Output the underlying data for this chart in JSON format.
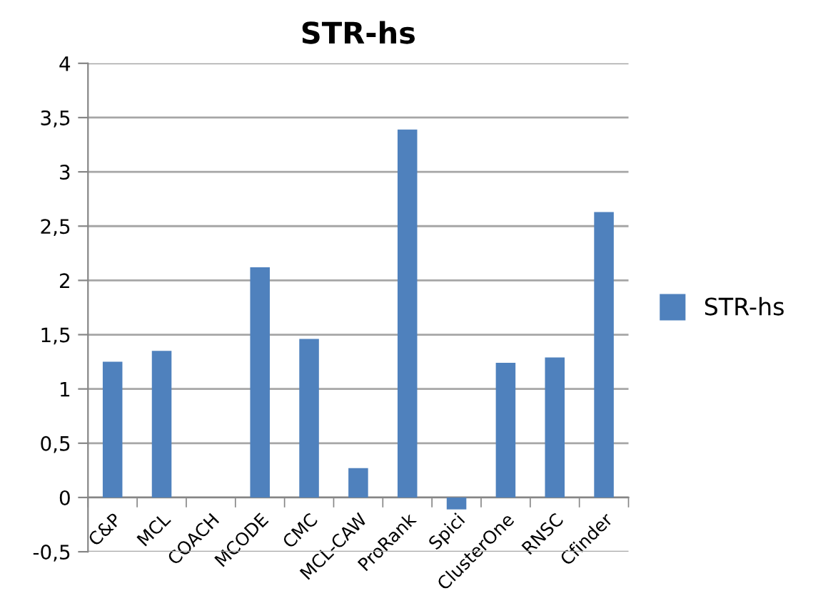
{
  "chart_data": {
    "type": "bar",
    "title": "STR-hs",
    "categories": [
      "C&P",
      "MCL",
      "COACH",
      "MCODE",
      "CMC",
      "MCL-CAW",
      "ProRank",
      "Spici",
      "ClusterOne",
      "RNSC",
      "Cfinder"
    ],
    "series": [
      {
        "name": "STR-hs",
        "color": "#4f81bd",
        "values": [
          1.25,
          1.35,
          0,
          2.12,
          1.46,
          0.27,
          3.39,
          -0.11,
          1.24,
          1.29,
          2.63
        ]
      }
    ],
    "ylim": [
      -0.5,
      4
    ],
    "yticks": [
      {
        "value": -0.5,
        "label": "-0,5"
      },
      0,
      {
        "value": 0.5,
        "label": "0,5"
      },
      1,
      {
        "value": 1.5,
        "label": "1,5"
      },
      2,
      {
        "value": 2.5,
        "label": "2,5"
      },
      3,
      {
        "value": 3.5,
        "label": "3,5"
      },
      4
    ],
    "grid": "y",
    "legend": "right"
  }
}
